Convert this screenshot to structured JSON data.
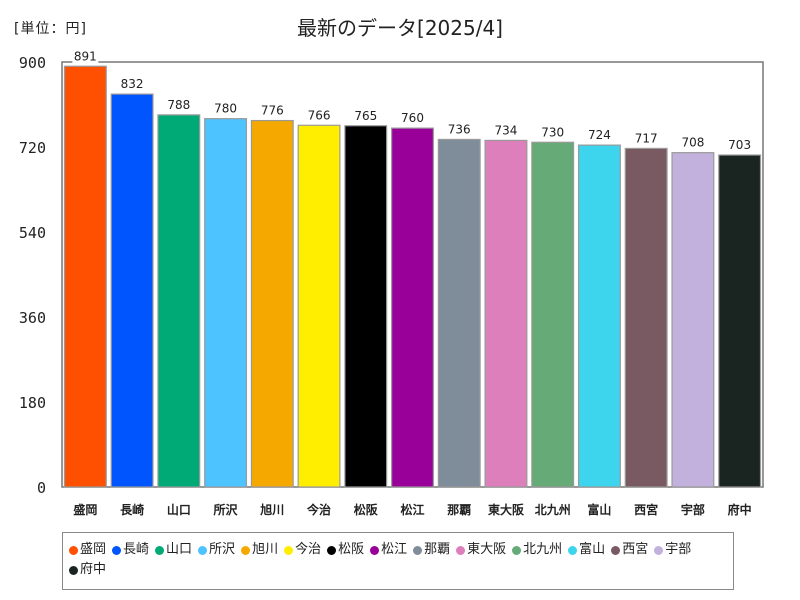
{
  "unit_label": "[単位：円]",
  "chart_data": {
    "type": "bar",
    "title": "最新のデータ[2025/4]",
    "xlabel": "",
    "ylabel": "",
    "ylim": [
      0,
      900
    ],
    "yticks": [
      0,
      180,
      360,
      540,
      720,
      900
    ],
    "categories": [
      "盛岡",
      "長崎",
      "山口",
      "所沢",
      "旭川",
      "今治",
      "松阪",
      "松江",
      "那覇",
      "東大阪",
      "北九州",
      "富山",
      "西宮",
      "宇部",
      "府中"
    ],
    "values": [
      891,
      832,
      788,
      780,
      776,
      766,
      765,
      760,
      736,
      734,
      730,
      724,
      717,
      708,
      703
    ],
    "colors": [
      "#ff4f00",
      "#0055ff",
      "#00aa77",
      "#4dc3ff",
      "#f5a800",
      "#ffee00",
      "#000000",
      "#990099",
      "#7f8c99",
      "#dd7fbb",
      "#66aa77",
      "#3dd4ee",
      "#7a5a62",
      "#c2b0dd",
      "#1a2420"
    ],
    "legend": true,
    "grid": false
  }
}
